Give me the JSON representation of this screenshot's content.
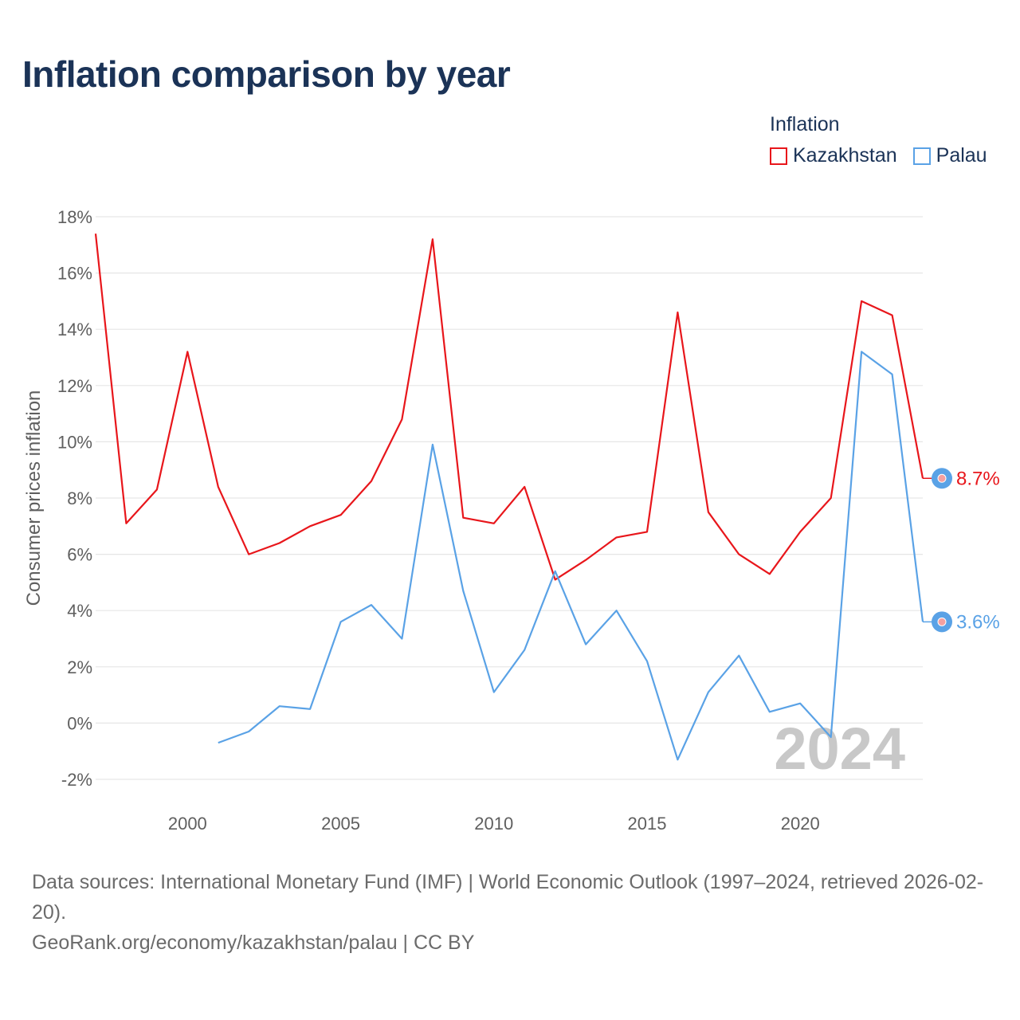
{
  "title": "Inflation comparison by year",
  "legend": {
    "title": "Inflation",
    "items": [
      {
        "label": "Kazakhstan",
        "color": "#e8161b"
      },
      {
        "label": "Palau",
        "color": "#5aa2e6"
      }
    ]
  },
  "footer": {
    "sources": "Data sources: International Monetary Fund (IMF) | World Economic Outlook (1997–2024, retrieved 2026-02-20).",
    "credit": "GeoRank.org/economy/kazakhstan/palau | CC BY"
  },
  "chart_data": {
    "type": "line",
    "title": "Inflation comparison by year",
    "xlabel": "",
    "ylabel": "Consumer prices inflation",
    "xlim": [
      1997,
      2024
    ],
    "ylim": [
      -2,
      18
    ],
    "yticks": [
      -2,
      0,
      2,
      4,
      6,
      8,
      10,
      12,
      14,
      16,
      18
    ],
    "ytick_labels": [
      "-2%",
      "0%",
      "2%",
      "4%",
      "6%",
      "8%",
      "10%",
      "12%",
      "14%",
      "16%",
      "18%"
    ],
    "xticks": [
      2000,
      2005,
      2010,
      2015,
      2020
    ],
    "xtick_labels": [
      "2000",
      "2005",
      "2010",
      "2015",
      "2020"
    ],
    "watermark": "2024",
    "series": [
      {
        "name": "Kazakhstan",
        "color": "#e8161b",
        "end_label": "8.7%",
        "points": [
          [
            1997,
            17.4
          ],
          [
            1998,
            7.1
          ],
          [
            1999,
            8.3
          ],
          [
            2000,
            13.2
          ],
          [
            2001,
            8.4
          ],
          [
            2002,
            6.0
          ],
          [
            2003,
            6.4
          ],
          [
            2004,
            7.0
          ],
          [
            2005,
            7.4
          ],
          [
            2006,
            8.6
          ],
          [
            2007,
            10.8
          ],
          [
            2008,
            17.2
          ],
          [
            2009,
            7.3
          ],
          [
            2010,
            7.1
          ],
          [
            2011,
            8.4
          ],
          [
            2012,
            5.1
          ],
          [
            2013,
            5.8
          ],
          [
            2014,
            6.6
          ],
          [
            2015,
            6.8
          ],
          [
            2016,
            14.6
          ],
          [
            2017,
            7.5
          ],
          [
            2018,
            6.0
          ],
          [
            2019,
            5.3
          ],
          [
            2020,
            6.8
          ],
          [
            2021,
            8.0
          ],
          [
            2022,
            15.0
          ],
          [
            2023,
            14.5
          ],
          [
            2024,
            8.7
          ]
        ]
      },
      {
        "name": "Palau",
        "color": "#5aa2e6",
        "end_label": "3.6%",
        "points": [
          [
            2001,
            -0.7
          ],
          [
            2002,
            -0.3
          ],
          [
            2003,
            0.6
          ],
          [
            2004,
            0.5
          ],
          [
            2005,
            3.6
          ],
          [
            2006,
            4.2
          ],
          [
            2007,
            3.0
          ],
          [
            2008,
            9.9
          ],
          [
            2009,
            4.7
          ],
          [
            2010,
            1.1
          ],
          [
            2011,
            2.6
          ],
          [
            2012,
            5.4
          ],
          [
            2013,
            2.8
          ],
          [
            2014,
            4.0
          ],
          [
            2015,
            2.2
          ],
          [
            2016,
            -1.3
          ],
          [
            2017,
            1.1
          ],
          [
            2018,
            2.4
          ],
          [
            2019,
            0.4
          ],
          [
            2020,
            0.7
          ],
          [
            2021,
            -0.5
          ],
          [
            2022,
            13.2
          ],
          [
            2023,
            12.4
          ],
          [
            2024,
            3.6
          ]
        ]
      }
    ]
  }
}
